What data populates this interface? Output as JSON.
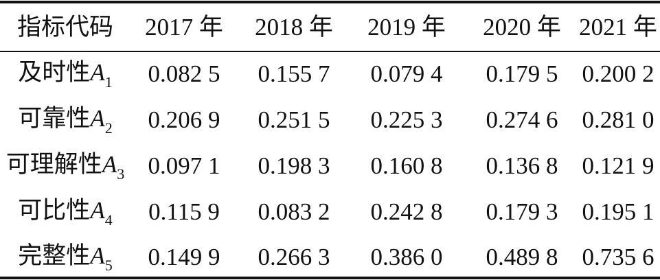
{
  "table": {
    "header": [
      "指标代码",
      "2017 年",
      "2018 年",
      "2019 年",
      "2020 年",
      "2021 年"
    ],
    "rows": [
      {
        "name": "及时性",
        "symbol": "A",
        "sub": "1",
        "values": [
          "0.082 5",
          "0.155 7",
          "0.079 4",
          "0.179 5",
          "0.200 2"
        ]
      },
      {
        "name": "可靠性",
        "symbol": "A",
        "sub": "2",
        "values": [
          "0.206 9",
          "0.251 5",
          "0.225 3",
          "0.274 6",
          "0.281 0"
        ]
      },
      {
        "name": "可理解性",
        "symbol": "A",
        "sub": "3",
        "values": [
          "0.097 1",
          "0.198 3",
          "0.160 8",
          "0.136 8",
          "0.121 9"
        ]
      },
      {
        "name": "可比性",
        "symbol": "A",
        "sub": "4",
        "values": [
          "0.115 9",
          "0.083 2",
          "0.242 8",
          "0.179 3",
          "0.195 1"
        ]
      },
      {
        "name": "完整性",
        "symbol": "A",
        "sub": "5",
        "values": [
          "0.149 9",
          "0.266 3",
          "0.386 0",
          "0.489 8",
          "0.735 6"
        ]
      }
    ]
  }
}
